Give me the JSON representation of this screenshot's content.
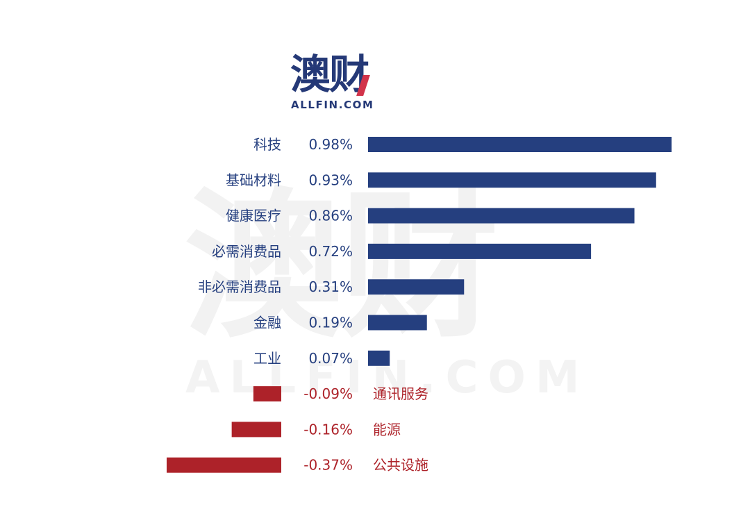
{
  "logo": {
    "main": "澳财",
    "sub": "ALLFIN.COM"
  },
  "watermark": {
    "main": "澳财",
    "sub": "ALLFIN.COM"
  },
  "colors": {
    "positive": "#253f7f",
    "negative": "#ad2229"
  },
  "chart_data": {
    "type": "bar",
    "orientation": "horizontal",
    "title": "",
    "xlabel": "",
    "ylabel": "",
    "unit": "%",
    "grid": false,
    "categories": [
      "科技",
      "基础材料",
      "健康医疗",
      "必需消费品",
      "非必需消费品",
      "金融",
      "工业",
      "通讯服务",
      "能源",
      "公共设施"
    ],
    "values": [
      0.98,
      0.93,
      0.86,
      0.72,
      0.31,
      0.19,
      0.07,
      -0.09,
      -0.16,
      -0.37
    ],
    "value_labels": [
      "0.98%",
      "0.93%",
      "0.86%",
      "0.72%",
      "0.31%",
      "0.19%",
      "0.07%",
      "-0.09%",
      "-0.16%",
      "-0.37%"
    ]
  }
}
